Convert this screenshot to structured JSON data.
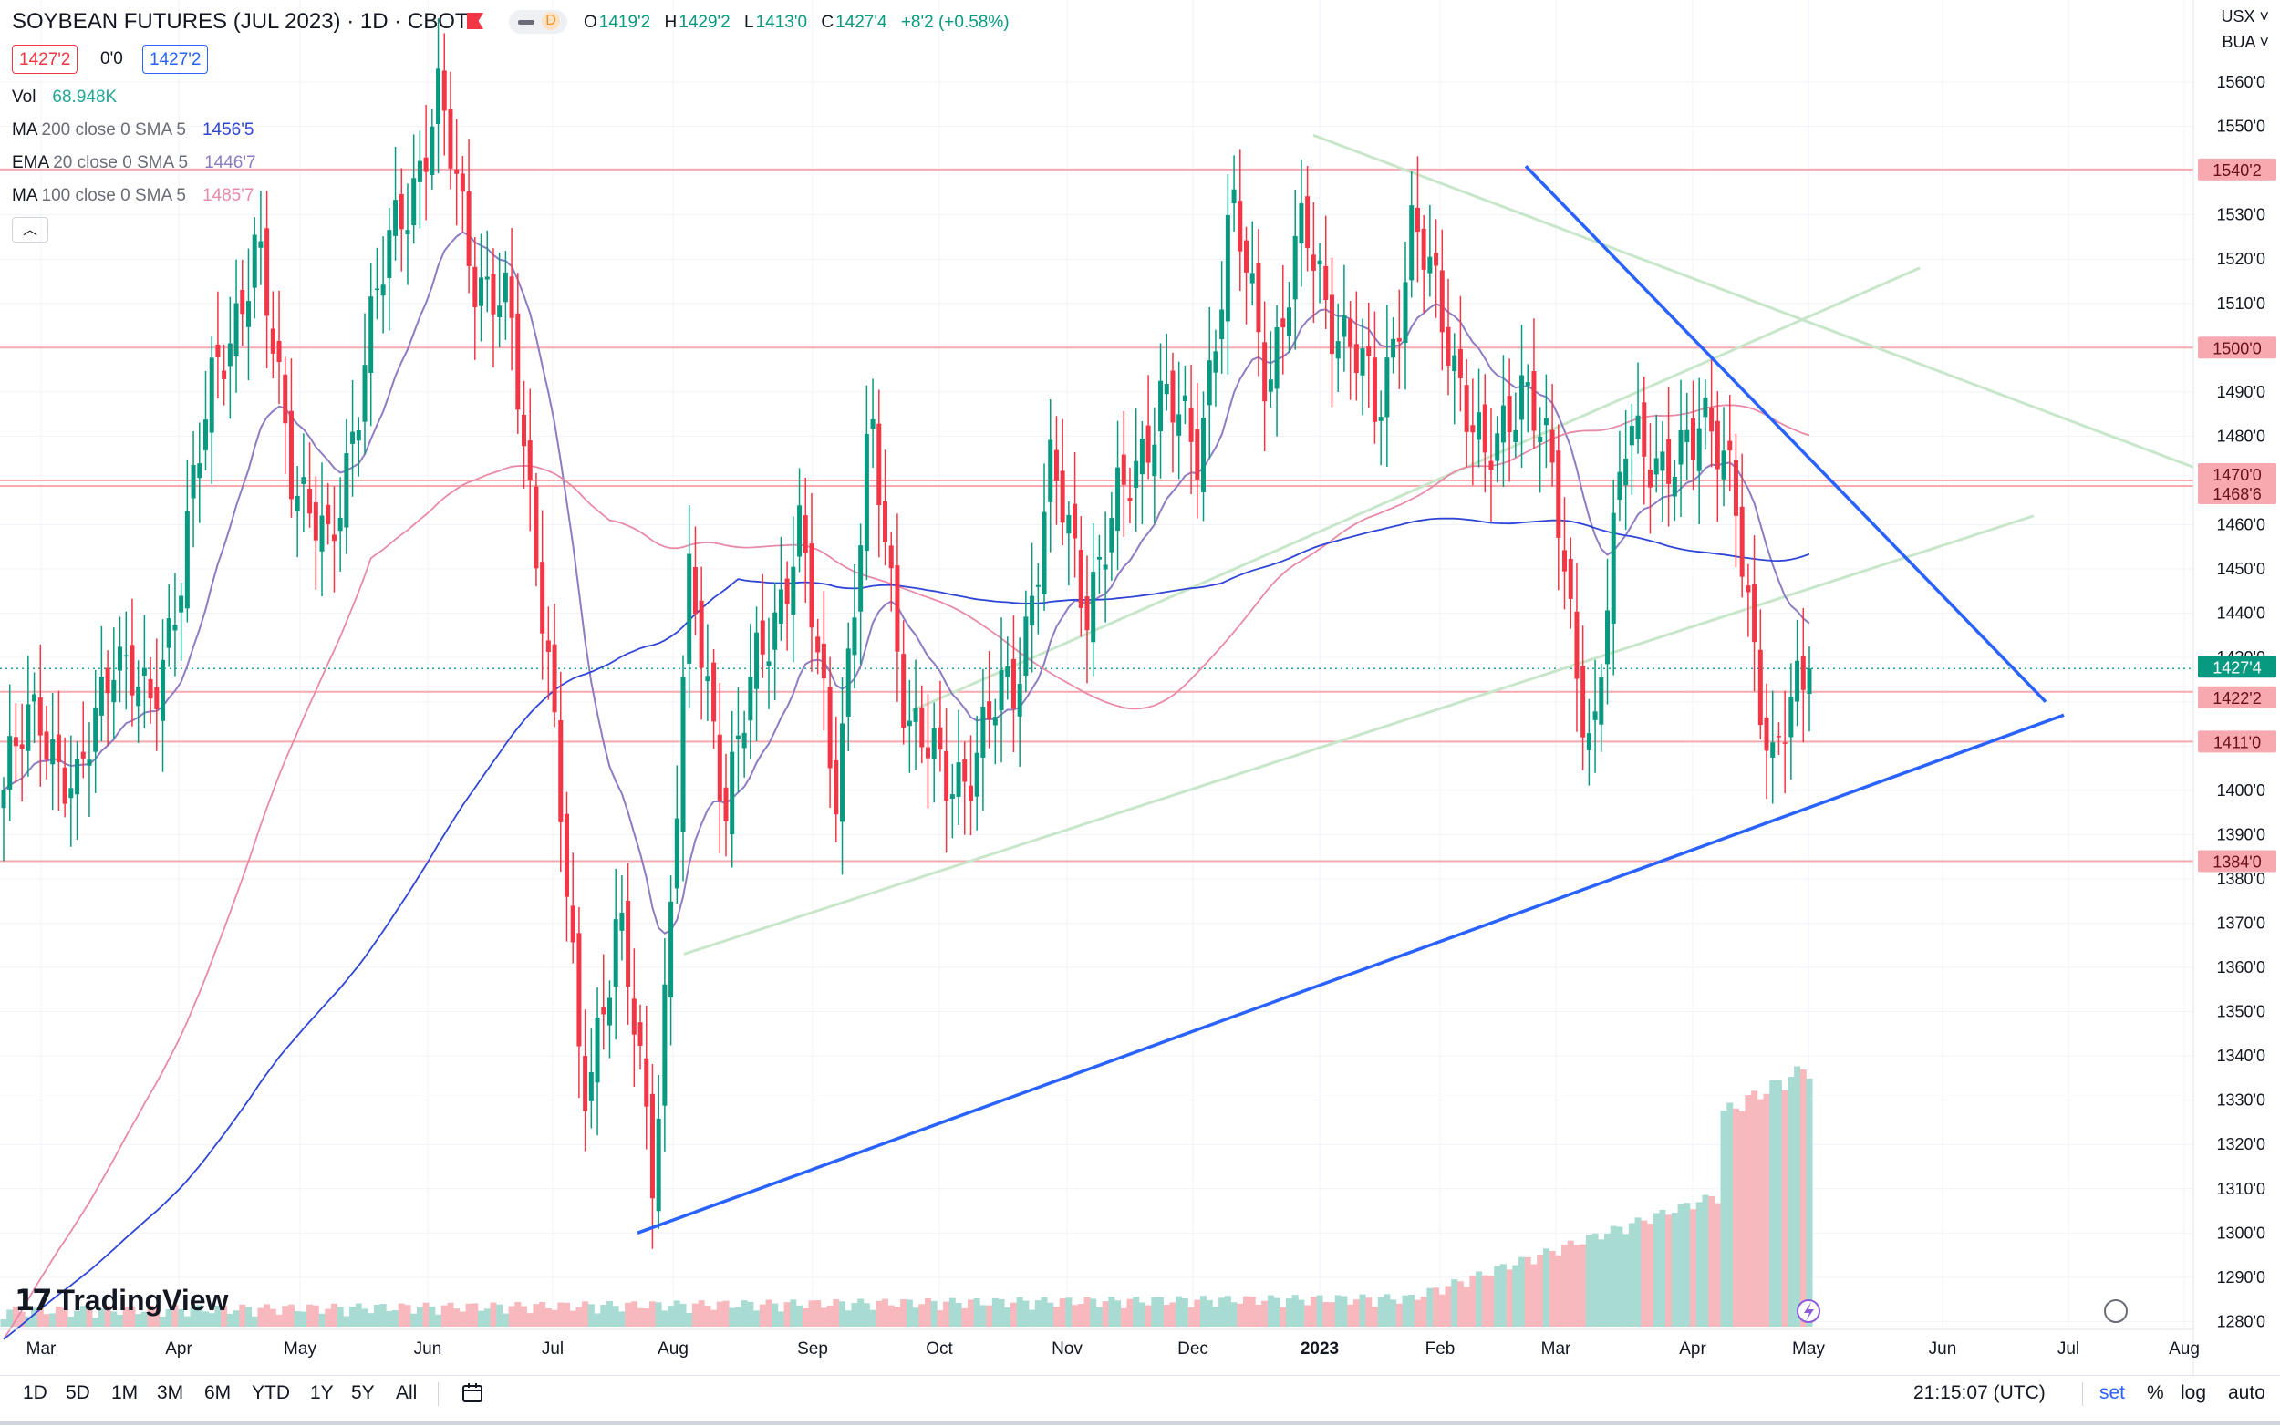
{
  "header": {
    "title": "SOYBEAN FUTURES (JUL 2023) · 1D · CBOT",
    "delayed_badge": "D",
    "ohlc": [
      {
        "k": "O",
        "v": "1419'2"
      },
      {
        "k": "H",
        "v": "1429'2"
      },
      {
        "k": "L",
        "v": "1413'0"
      },
      {
        "k": "C",
        "v": "1427'4"
      },
      {
        "k": "",
        "v": "+8'2 (+0.58%)"
      }
    ],
    "bid": "1427'2",
    "spread": "0'0",
    "ask": "1427'2"
  },
  "indicators": [
    {
      "name": "Vol",
      "params": "",
      "value": "68.948K",
      "color": "#26a69a"
    },
    {
      "name": "MA",
      "params": "200 close 0 SMA 5",
      "value": "1456'5",
      "color": "#2f45d6"
    },
    {
      "name": "EMA",
      "params": "20 close 0 SMA 5",
      "value": "1446'7",
      "color": "#8e7cc3"
    },
    {
      "name": "MA",
      "params": "100 close 0 SMA 5",
      "value": "1485'7",
      "color": "#e88aa6"
    }
  ],
  "axis": {
    "currency": "USX",
    "unit": "BUA",
    "ticks": [
      "1560'0",
      "1550'0",
      "1540'0",
      "1530'0",
      "1520'0",
      "1510'0",
      "1500'0",
      "1490'0",
      "1480'0",
      "1470'0",
      "1460'0",
      "1450'0",
      "1440'0",
      "1430'0",
      "1420'0",
      "1410'0",
      "1400'0",
      "1390'0",
      "1380'0",
      "1370'0",
      "1360'0",
      "1350'0",
      "1340'0",
      "1330'0",
      "1320'0",
      "1310'0",
      "1300'0",
      "1290'0",
      "1280'0"
    ],
    "level_labels": [
      "1540'2",
      "1500'0",
      "1470'0",
      "1468'6",
      "1427'4",
      "1422'2",
      "1411'0",
      "1384'0"
    ]
  },
  "time_axis": [
    "Mar",
    "Apr",
    "May",
    "Jun",
    "Jul",
    "Aug",
    "Sep",
    "Oct",
    "Nov",
    "Dec",
    "2023",
    "Feb",
    "Mar",
    "Apr",
    "May",
    "Jun",
    "Jul",
    "Aug"
  ],
  "bottom_toolbar": {
    "ranges": [
      "1D",
      "5D",
      "1M",
      "3M",
      "6M",
      "YTD",
      "1Y",
      "5Y",
      "All"
    ],
    "clock": "21:15:07 (UTC)",
    "right_items": [
      "set",
      "%",
      "log",
      "auto"
    ]
  },
  "logo_text": "TradingView",
  "colors": {
    "up": "#089981",
    "down": "#f23645",
    "trend": "#2962ff",
    "level": "#f7a9af",
    "channel": "#c8e6c9"
  },
  "chart_data": {
    "type": "candlestick",
    "title": "SOYBEAN FUTURES (JUL 2023) · 1D · CBOT",
    "ylim": [
      1276,
      1568
    ],
    "last_close": 1427.5,
    "moving_averages": [
      {
        "name": "MA 200",
        "value": 1456.6
      },
      {
        "name": "EMA 20",
        "value": 1446.9
      },
      {
        "name": "MA 100",
        "value": 1485.9
      }
    ],
    "horizontal_levels": [
      1540.25,
      1500.0,
      1470.0,
      1468.75,
      1422.25,
      1411.0,
      1384.0
    ],
    "price_track": [
      [
        "Mar",
        1400
      ],
      [
        "Mar",
        1420
      ],
      [
        "Mar",
        1395
      ],
      [
        "Apr",
        1435
      ],
      [
        "Apr",
        1415
      ],
      [
        "Apr",
        1455
      ],
      [
        "Apr",
        1500
      ],
      [
        "May",
        1520
      ],
      [
        "May",
        1475
      ],
      [
        "May",
        1450
      ],
      [
        "May",
        1500
      ],
      [
        "Jun",
        1530
      ],
      [
        "Jun",
        1555
      ],
      [
        "Jun",
        1520
      ],
      [
        "Jun",
        1505
      ],
      [
        "Jul",
        1440
      ],
      [
        "Jul",
        1330
      ],
      [
        "Jul",
        1370
      ],
      [
        "Jul",
        1315
      ],
      [
        "Aug",
        1445
      ],
      [
        "Aug",
        1400
      ],
      [
        "Aug",
        1430
      ],
      [
        "Sep",
        1460
      ],
      [
        "Sep",
        1400
      ],
      [
        "Sep",
        1480
      ],
      [
        "Oct",
        1420
      ],
      [
        "Oct",
        1400
      ],
      [
        "Oct",
        1410
      ],
      [
        "Nov",
        1425
      ],
      [
        "Nov",
        1470
      ],
      [
        "Nov",
        1445
      ],
      [
        "Dec",
        1465
      ],
      [
        "Dec",
        1490
      ],
      [
        "Dec",
        1475
      ],
      [
        "2023",
        1530
      ],
      [
        "2023",
        1495
      ],
      [
        "2023",
        1525
      ],
      [
        "Feb",
        1505
      ],
      [
        "Feb",
        1485
      ],
      [
        "Feb",
        1525
      ],
      [
        "Feb",
        1505
      ],
      [
        "Mar",
        1470
      ],
      [
        "Mar",
        1495
      ],
      [
        "Mar",
        1465
      ],
      [
        "Mar",
        1405
      ],
      [
        "Apr",
        1490
      ],
      [
        "Apr",
        1465
      ],
      [
        "Apr",
        1490
      ],
      [
        "Apr",
        1460
      ],
      [
        "Apr",
        1405
      ],
      [
        "May",
        1427.5
      ]
    ],
    "volume_peak": 157
  }
}
